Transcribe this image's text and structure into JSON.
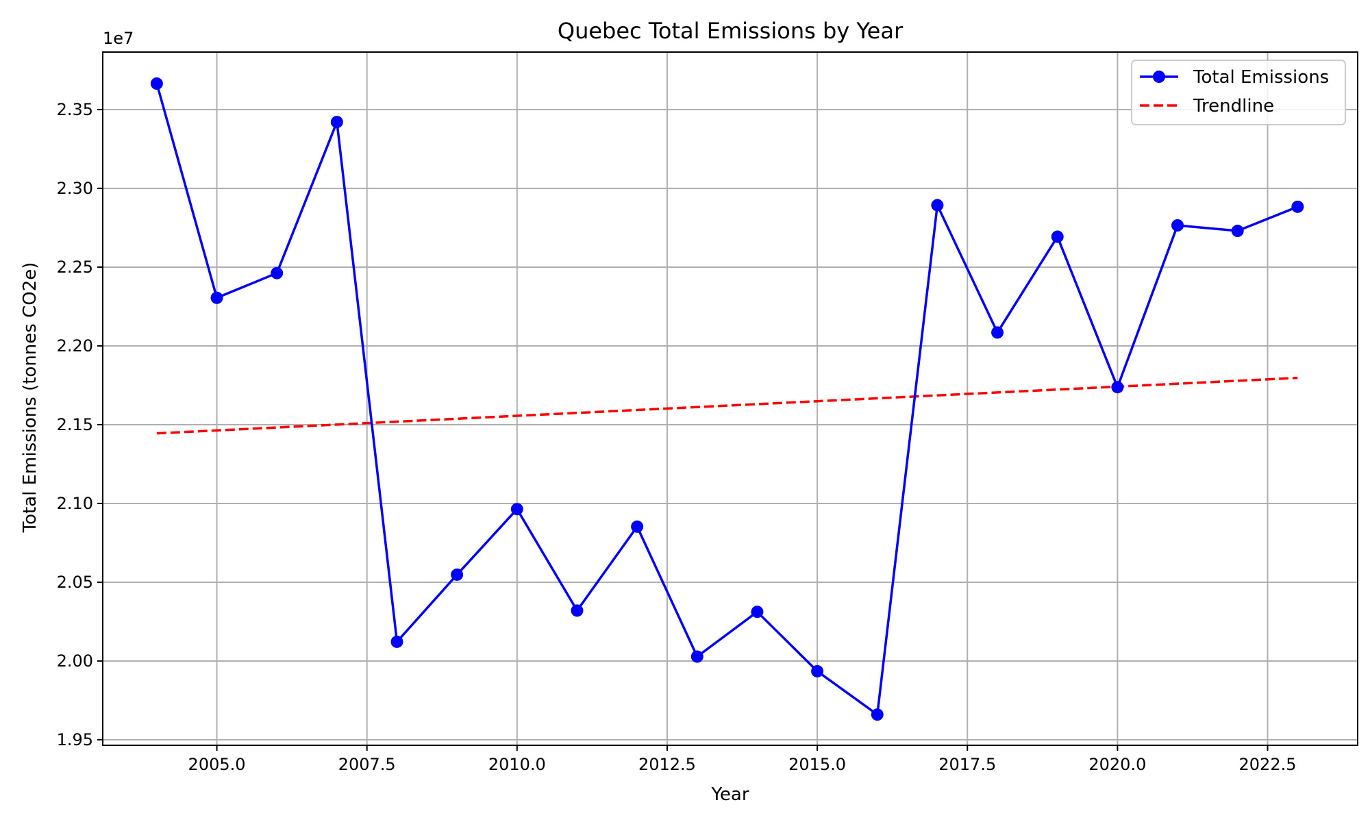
{
  "chart_data": {
    "type": "line",
    "title": "Quebec Total Emissions by Year",
    "xlabel": "Year",
    "ylabel": "Total Emissions (tonnes CO2e)",
    "y_offset_label": "1e7",
    "xlim": [
      2003.1,
      2024.0
    ],
    "ylim": [
      1.9465,
      2.3865
    ],
    "x_ticks": [
      2005.0,
      2007.5,
      2010.0,
      2012.5,
      2015.0,
      2017.5,
      2020.0,
      2022.5
    ],
    "x_tick_labels": [
      "2005.0",
      "2007.5",
      "2010.0",
      "2012.5",
      "2015.0",
      "2017.5",
      "2020.0",
      "2022.5"
    ],
    "y_ticks": [
      1.95,
      2.0,
      2.05,
      2.1,
      2.15,
      2.2,
      2.25,
      2.3,
      2.35
    ],
    "y_tick_labels": [
      "1.95",
      "2.00",
      "2.05",
      "2.10",
      "2.15",
      "2.20",
      "2.25",
      "2.30",
      "2.35"
    ],
    "grid": true,
    "legend_position": "top-right",
    "series": [
      {
        "name": "Total Emissions",
        "style": "solid-markers",
        "color": "#0000ff",
        "x": [
          2004,
          2005,
          2006,
          2007,
          2008,
          2009,
          2010,
          2011,
          2012,
          2013,
          2014,
          2015,
          2016,
          2017,
          2018,
          2019,
          2020,
          2021,
          2022,
          2023
        ],
        "values": [
          2.3665,
          2.2305,
          2.2462,
          2.3421,
          2.0122,
          2.0548,
          2.0964,
          2.032,
          2.0853,
          2.0028,
          2.0312,
          1.9935,
          1.966,
          2.2893,
          2.2085,
          2.2693,
          2.1738,
          2.2765,
          2.273,
          2.2883
        ]
      },
      {
        "name": "Trendline",
        "style": "dashed",
        "color": "#ff0000",
        "x": [
          2004,
          2023
        ],
        "values": [
          2.1445,
          2.1797
        ]
      }
    ]
  }
}
